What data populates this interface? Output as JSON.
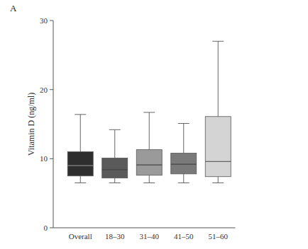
{
  "chart_data": {
    "type": "box",
    "title": "A",
    "y_label": "Vitamin D (ng/ml)",
    "categories": [
      "Overall",
      "18–30",
      "31–40",
      "41–50",
      "51–60"
    ],
    "min": [
      6.5,
      6.5,
      6.5,
      6.5,
      6.5
    ],
    "q1": [
      7.5,
      7.2,
      7.6,
      7.8,
      7.4
    ],
    "median": [
      9.0,
      8.4,
      9.1,
      9.2,
      9.6
    ],
    "q3": [
      11.0,
      10.1,
      11.3,
      10.8,
      16.1
    ],
    "max": [
      16.4,
      14.2,
      16.7,
      15.1,
      27.0
    ],
    "colors": [
      "#2e2e2e",
      "#5a5a5a",
      "#9a9a9a",
      "#7a7a7a",
      "#d4d4d4"
    ],
    "ylim": [
      0,
      30
    ],
    "yticks": [
      0,
      10,
      20,
      30
    ],
    "grid": false
  }
}
